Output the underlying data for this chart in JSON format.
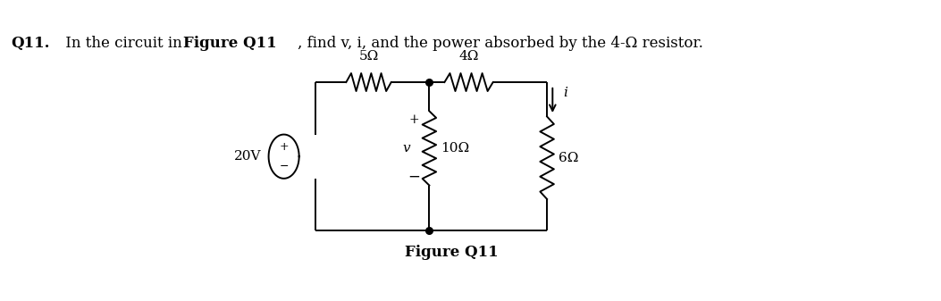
{
  "bg_color": "#ffffff",
  "line_color": "#000000",
  "title_q11": "Q11.",
  "title_normal1": " In the circuit in ",
  "title_bold": "Figure Q11",
  "title_normal2": ", find v, i, and the power absorbed by the 4-Ω resistor.",
  "fig_caption": "Figure Q11",
  "res5_label": "5Ω",
  "res4_label": "4Ω",
  "res10_label": "10Ω",
  "res6_label": "6Ω",
  "source_label": "20V",
  "current_label": "i",
  "voltage_label": "v",
  "plus": "+",
  "minus": "−"
}
